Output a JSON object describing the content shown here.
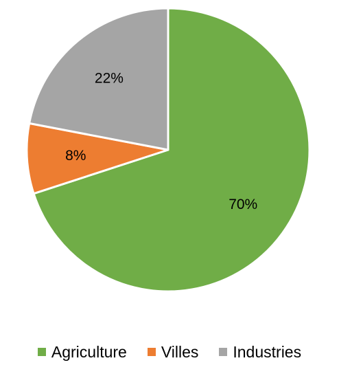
{
  "chart_data": {
    "type": "pie",
    "title": "",
    "categories": [
      "Agriculture",
      "Villes",
      "Industries"
    ],
    "values": [
      70,
      8,
      22
    ],
    "labels": [
      "70%",
      "8%",
      "22%"
    ],
    "colors": [
      "#70AD47",
      "#ED7D31",
      "#A5A5A5"
    ],
    "start_angle_deg": 0,
    "direction": "clockwise",
    "legend_position": "bottom"
  }
}
